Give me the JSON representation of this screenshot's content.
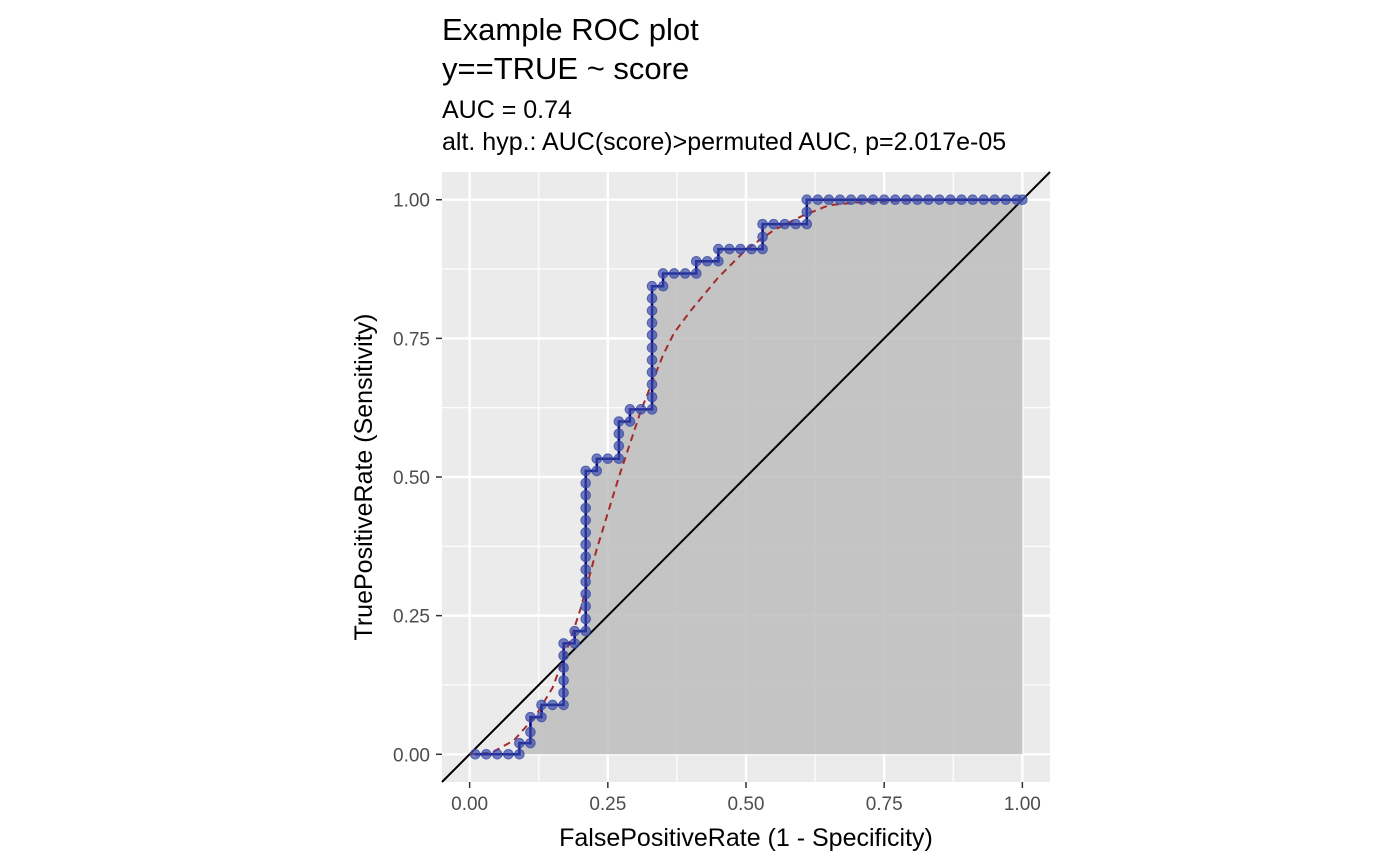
{
  "chart_data": {
    "type": "line",
    "title_lines": [
      "Example ROC plot",
      "y==TRUE ~ score"
    ],
    "subtitle_lines": [
      "AUC = 0.74",
      "alt. hyp.: AUC(score)>permuted AUC, p=2.017e-05"
    ],
    "xlabel": "FalsePositiveRate (1 - Specificity)",
    "ylabel": "TruePositiveRate (Sensitivity)",
    "xlim": [
      -0.05,
      1.05
    ],
    "ylim": [
      -0.05,
      1.05
    ],
    "xticks": [
      "0.00",
      "0.25",
      "0.50",
      "0.75",
      "1.00"
    ],
    "yticks": [
      "0.00",
      "0.25",
      "0.50",
      "0.75",
      "1.00"
    ],
    "grid": true,
    "legend": "none",
    "colors": {
      "panel_bg": "#ebebeb",
      "grid": "#ffffff",
      "area_fill": "#bdbdbd",
      "roc_line": "#000080",
      "points": "#3b4ba8",
      "smooth_line": "#a52a2a",
      "diagonal": "#000000",
      "tick_text": "#4d4d4d"
    },
    "series": [
      {
        "type": "step",
        "points": [
          [
            0.01,
            0.0
          ],
          [
            0.03,
            0.0
          ],
          [
            0.05,
            0.0
          ],
          [
            0.07,
            0.0
          ],
          [
            0.09,
            0.0
          ],
          [
            0.09,
            0.02
          ],
          [
            0.11,
            0.02
          ],
          [
            0.11,
            0.04
          ],
          [
            0.11,
            0.067
          ],
          [
            0.13,
            0.067
          ],
          [
            0.13,
            0.089
          ],
          [
            0.15,
            0.089
          ],
          [
            0.17,
            0.089
          ],
          [
            0.17,
            0.111
          ],
          [
            0.17,
            0.133
          ],
          [
            0.17,
            0.156
          ],
          [
            0.17,
            0.178
          ],
          [
            0.17,
            0.2
          ],
          [
            0.19,
            0.2
          ],
          [
            0.19,
            0.222
          ],
          [
            0.21,
            0.222
          ],
          [
            0.21,
            0.244
          ],
          [
            0.21,
            0.267
          ],
          [
            0.21,
            0.289
          ],
          [
            0.21,
            0.311
          ],
          [
            0.21,
            0.333
          ],
          [
            0.21,
            0.356
          ],
          [
            0.21,
            0.378
          ],
          [
            0.21,
            0.4
          ],
          [
            0.21,
            0.422
          ],
          [
            0.21,
            0.444
          ],
          [
            0.21,
            0.467
          ],
          [
            0.21,
            0.489
          ],
          [
            0.21,
            0.511
          ],
          [
            0.23,
            0.511
          ],
          [
            0.23,
            0.533
          ],
          [
            0.25,
            0.533
          ],
          [
            0.27,
            0.533
          ],
          [
            0.27,
            0.556
          ],
          [
            0.27,
            0.578
          ],
          [
            0.27,
            0.6
          ],
          [
            0.29,
            0.6
          ],
          [
            0.29,
            0.622
          ],
          [
            0.31,
            0.622
          ],
          [
            0.33,
            0.622
          ],
          [
            0.33,
            0.644
          ],
          [
            0.33,
            0.667
          ],
          [
            0.33,
            0.689
          ],
          [
            0.33,
            0.711
          ],
          [
            0.33,
            0.733
          ],
          [
            0.33,
            0.756
          ],
          [
            0.33,
            0.778
          ],
          [
            0.33,
            0.8
          ],
          [
            0.33,
            0.822
          ],
          [
            0.33,
            0.844
          ],
          [
            0.35,
            0.844
          ],
          [
            0.35,
            0.867
          ],
          [
            0.37,
            0.867
          ],
          [
            0.39,
            0.867
          ],
          [
            0.41,
            0.867
          ],
          [
            0.41,
            0.889
          ],
          [
            0.43,
            0.889
          ],
          [
            0.45,
            0.889
          ],
          [
            0.45,
            0.911
          ],
          [
            0.47,
            0.911
          ],
          [
            0.49,
            0.911
          ],
          [
            0.51,
            0.911
          ],
          [
            0.53,
            0.911
          ],
          [
            0.53,
            0.933
          ],
          [
            0.53,
            0.956
          ],
          [
            0.55,
            0.956
          ],
          [
            0.57,
            0.956
          ],
          [
            0.59,
            0.956
          ],
          [
            0.61,
            0.956
          ],
          [
            0.61,
            0.978
          ],
          [
            0.61,
            1.0
          ],
          [
            0.63,
            1.0
          ],
          [
            0.65,
            1.0
          ],
          [
            0.67,
            1.0
          ],
          [
            0.69,
            1.0
          ],
          [
            0.71,
            1.0
          ],
          [
            0.73,
            1.0
          ],
          [
            0.75,
            1.0
          ],
          [
            0.77,
            1.0
          ],
          [
            0.79,
            1.0
          ],
          [
            0.81,
            1.0
          ],
          [
            0.83,
            1.0
          ],
          [
            0.85,
            1.0
          ],
          [
            0.87,
            1.0
          ],
          [
            0.89,
            1.0
          ],
          [
            0.91,
            1.0
          ],
          [
            0.93,
            1.0
          ],
          [
            0.95,
            1.0
          ],
          [
            0.97,
            1.0
          ],
          [
            0.99,
            1.0
          ],
          [
            1.0,
            1.0
          ]
        ]
      },
      {
        "type": "smooth-dashed",
        "points": [
          [
            0.0,
            0.0
          ],
          [
            0.04,
            0.003
          ],
          [
            0.08,
            0.025
          ],
          [
            0.12,
            0.07
          ],
          [
            0.15,
            0.12
          ],
          [
            0.18,
            0.2
          ],
          [
            0.2,
            0.26
          ],
          [
            0.23,
            0.37
          ],
          [
            0.27,
            0.5
          ],
          [
            0.31,
            0.62
          ],
          [
            0.35,
            0.72
          ],
          [
            0.37,
            0.76
          ],
          [
            0.4,
            0.8
          ],
          [
            0.45,
            0.86
          ],
          [
            0.5,
            0.91
          ],
          [
            0.55,
            0.945
          ],
          [
            0.6,
            0.97
          ],
          [
            0.65,
            0.99
          ],
          [
            0.7,
            0.995
          ],
          [
            0.8,
            0.999
          ],
          [
            0.9,
            1.0
          ],
          [
            1.0,
            1.0
          ]
        ]
      },
      {
        "type": "reference",
        "points": [
          [
            -0.05,
            -0.05
          ],
          [
            1.05,
            1.05
          ]
        ]
      }
    ]
  }
}
